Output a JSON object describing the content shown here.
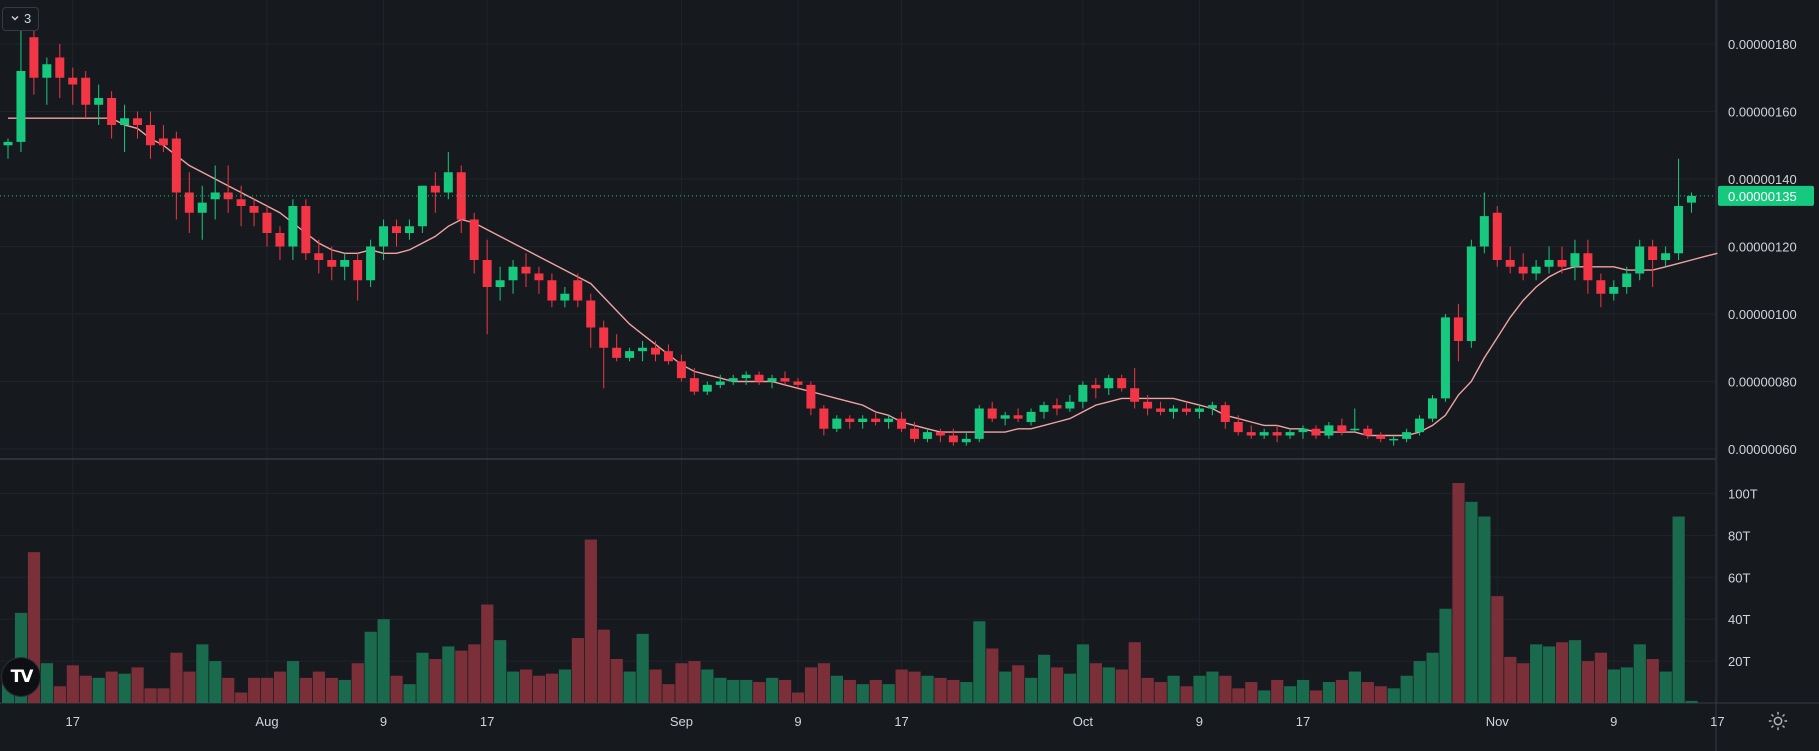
{
  "indicator_toggle": {
    "icon": "chevron-down-icon",
    "count": "3"
  },
  "logo": {
    "text": "TV",
    "icon": "tradingview-logo-icon"
  },
  "settings": {
    "icon": "gear-icon"
  },
  "colors": {
    "up": "#26a69a",
    "up_bright": "#17c97e",
    "down": "#f23645",
    "down_vol": "#7a2f39",
    "up_vol": "#1a6b4e",
    "ma": "#f0a3a3",
    "bg": "#161a1f",
    "grid": "#1f232b",
    "axis_text": "#d1d4dc"
  },
  "chart_data": {
    "type": "candlestick",
    "price_axis": {
      "ticks": [
        "0.00000060",
        "0.00000080",
        "0.00000100",
        "0.00000120",
        "0.00000140",
        "0.00000160",
        "0.00000180"
      ],
      "range": [
        4.8e-07,
        1.9e-06
      ]
    },
    "last_price": "0.00000135",
    "volume_axis": {
      "ticks": [
        "20T",
        "40T",
        "60T",
        "80T",
        "100T"
      ],
      "range": [
        0,
        105
      ]
    },
    "x_labels": [
      {
        "label": "17",
        "index": 5
      },
      {
        "label": "Aug",
        "index": 20
      },
      {
        "label": "9",
        "index": 29
      },
      {
        "label": "17",
        "index": 37
      },
      {
        "label": "Sep",
        "index": 52
      },
      {
        "label": "9",
        "index": 61
      },
      {
        "label": "17",
        "index": 69
      },
      {
        "label": "Oct",
        "index": 83
      },
      {
        "label": "9",
        "index": 92
      },
      {
        "label": "17",
        "index": 100
      },
      {
        "label": "Nov",
        "index": 115
      },
      {
        "label": "9",
        "index": 124
      },
      {
        "label": "17",
        "index": 132
      }
    ],
    "candles": [
      [
        1.5,
        1.52,
        1.46,
        1.51,
        10
      ],
      [
        1.51,
        1.85,
        1.48,
        1.72,
        43
      ],
      [
        1.82,
        1.88,
        1.65,
        1.7,
        72
      ],
      [
        1.7,
        1.76,
        1.62,
        1.74,
        19
      ],
      [
        1.76,
        1.8,
        1.64,
        1.7,
        8
      ],
      [
        1.7,
        1.73,
        1.62,
        1.68,
        18
      ],
      [
        1.7,
        1.72,
        1.58,
        1.62,
        13
      ],
      [
        1.62,
        1.68,
        1.56,
        1.64,
        12
      ],
      [
        1.64,
        1.66,
        1.52,
        1.56,
        15
      ],
      [
        1.56,
        1.62,
        1.48,
        1.58,
        14
      ],
      [
        1.58,
        1.6,
        1.52,
        1.56,
        17
      ],
      [
        1.56,
        1.6,
        1.46,
        1.5,
        7
      ],
      [
        1.52,
        1.56,
        1.48,
        1.5,
        7
      ],
      [
        1.52,
        1.54,
        1.28,
        1.36,
        24
      ],
      [
        1.36,
        1.42,
        1.24,
        1.3,
        15
      ],
      [
        1.3,
        1.38,
        1.22,
        1.33,
        28
      ],
      [
        1.34,
        1.44,
        1.28,
        1.36,
        20
      ],
      [
        1.36,
        1.44,
        1.3,
        1.34,
        12
      ],
      [
        1.34,
        1.38,
        1.26,
        1.32,
        5
      ],
      [
        1.32,
        1.34,
        1.26,
        1.3,
        12
      ],
      [
        1.3,
        1.32,
        1.2,
        1.24,
        12
      ],
      [
        1.24,
        1.26,
        1.16,
        1.2,
        15
      ],
      [
        1.2,
        1.34,
        1.16,
        1.32,
        20
      ],
      [
        1.32,
        1.34,
        1.16,
        1.18,
        12
      ],
      [
        1.18,
        1.22,
        1.12,
        1.16,
        15
      ],
      [
        1.16,
        1.2,
        1.1,
        1.14,
        12
      ],
      [
        1.14,
        1.18,
        1.1,
        1.16,
        11
      ],
      [
        1.16,
        1.18,
        1.04,
        1.1,
        19
      ],
      [
        1.1,
        1.22,
        1.08,
        1.2,
        34
      ],
      [
        1.2,
        1.28,
        1.16,
        1.26,
        40
      ],
      [
        1.26,
        1.28,
        1.2,
        1.24,
        13
      ],
      [
        1.24,
        1.28,
        1.22,
        1.26,
        9
      ],
      [
        1.26,
        1.38,
        1.24,
        1.38,
        24
      ],
      [
        1.38,
        1.42,
        1.3,
        1.36,
        21
      ],
      [
        1.36,
        1.48,
        1.34,
        1.42,
        27
      ],
      [
        1.42,
        1.44,
        1.24,
        1.28,
        25
      ],
      [
        1.28,
        1.3,
        1.12,
        1.16,
        28
      ],
      [
        1.16,
        1.22,
        0.94,
        1.08,
        47
      ],
      [
        1.08,
        1.14,
        1.04,
        1.1,
        30
      ],
      [
        1.1,
        1.16,
        1.06,
        1.14,
        15
      ],
      [
        1.14,
        1.18,
        1.08,
        1.12,
        16
      ],
      [
        1.12,
        1.14,
        1.06,
        1.1,
        13
      ],
      [
        1.1,
        1.12,
        1.02,
        1.04,
        14
      ],
      [
        1.04,
        1.08,
        1.02,
        1.06,
        16
      ],
      [
        1.1,
        1.12,
        1.02,
        1.04,
        31
      ],
      [
        1.04,
        1.06,
        0.9,
        0.96,
        78
      ],
      [
        0.96,
        0.98,
        0.78,
        0.9,
        35
      ],
      [
        0.9,
        0.94,
        0.86,
        0.87,
        21
      ],
      [
        0.87,
        0.9,
        0.86,
        0.89,
        15
      ],
      [
        0.89,
        0.92,
        0.86,
        0.9,
        33
      ],
      [
        0.9,
        0.92,
        0.86,
        0.88,
        16
      ],
      [
        0.89,
        0.91,
        0.85,
        0.86,
        9
      ],
      [
        0.86,
        0.88,
        0.8,
        0.81,
        19
      ],
      [
        0.81,
        0.84,
        0.76,
        0.77,
        20
      ],
      [
        0.77,
        0.8,
        0.76,
        0.79,
        16
      ],
      [
        0.79,
        0.82,
        0.78,
        0.8,
        12
      ],
      [
        0.8,
        0.82,
        0.79,
        0.81,
        11
      ],
      [
        0.81,
        0.83,
        0.79,
        0.82,
        11
      ],
      [
        0.82,
        0.83,
        0.79,
        0.8,
        10
      ],
      [
        0.8,
        0.82,
        0.78,
        0.81,
        12
      ],
      [
        0.81,
        0.83,
        0.79,
        0.8,
        11
      ],
      [
        0.8,
        0.81,
        0.78,
        0.79,
        5
      ],
      [
        0.79,
        0.8,
        0.7,
        0.72,
        17
      ],
      [
        0.72,
        0.73,
        0.64,
        0.66,
        19
      ],
      [
        0.66,
        0.7,
        0.65,
        0.69,
        13
      ],
      [
        0.69,
        0.7,
        0.66,
        0.68,
        11
      ],
      [
        0.68,
        0.7,
        0.66,
        0.69,
        9
      ],
      [
        0.69,
        0.71,
        0.67,
        0.68,
        11
      ],
      [
        0.68,
        0.7,
        0.66,
        0.69,
        9
      ],
      [
        0.69,
        0.71,
        0.65,
        0.66,
        16
      ],
      [
        0.66,
        0.68,
        0.62,
        0.63,
        15
      ],
      [
        0.63,
        0.66,
        0.62,
        0.65,
        13
      ],
      [
        0.65,
        0.66,
        0.62,
        0.64,
        12
      ],
      [
        0.64,
        0.66,
        0.61,
        0.62,
        11
      ],
      [
        0.62,
        0.65,
        0.61,
        0.63,
        10
      ],
      [
        0.63,
        0.73,
        0.62,
        0.72,
        39
      ],
      [
        0.72,
        0.74,
        0.68,
        0.69,
        26
      ],
      [
        0.69,
        0.71,
        0.67,
        0.7,
        15
      ],
      [
        0.7,
        0.72,
        0.68,
        0.69,
        18
      ],
      [
        0.68,
        0.72,
        0.67,
        0.71,
        12
      ],
      [
        0.71,
        0.74,
        0.69,
        0.73,
        23
      ],
      [
        0.73,
        0.75,
        0.7,
        0.72,
        17
      ],
      [
        0.72,
        0.76,
        0.71,
        0.74,
        14
      ],
      [
        0.74,
        0.8,
        0.72,
        0.79,
        28
      ],
      [
        0.79,
        0.81,
        0.75,
        0.78,
        19
      ],
      [
        0.78,
        0.82,
        0.76,
        0.81,
        17
      ],
      [
        0.81,
        0.82,
        0.77,
        0.78,
        16
      ],
      [
        0.78,
        0.84,
        0.72,
        0.74,
        29
      ],
      [
        0.74,
        0.76,
        0.7,
        0.72,
        12
      ],
      [
        0.72,
        0.74,
        0.7,
        0.71,
        10
      ],
      [
        0.71,
        0.73,
        0.69,
        0.72,
        13
      ],
      [
        0.72,
        0.74,
        0.7,
        0.71,
        8
      ],
      [
        0.71,
        0.73,
        0.69,
        0.72,
        13
      ],
      [
        0.72,
        0.74,
        0.7,
        0.73,
        15
      ],
      [
        0.73,
        0.74,
        0.66,
        0.68,
        13
      ],
      [
        0.68,
        0.7,
        0.64,
        0.65,
        7
      ],
      [
        0.65,
        0.67,
        0.63,
        0.64,
        10
      ],
      [
        0.64,
        0.66,
        0.63,
        0.65,
        6
      ],
      [
        0.65,
        0.67,
        0.62,
        0.64,
        11
      ],
      [
        0.64,
        0.66,
        0.63,
        0.65,
        8
      ],
      [
        0.65,
        0.67,
        0.63,
        0.66,
        11
      ],
      [
        0.66,
        0.67,
        0.63,
        0.64,
        6
      ],
      [
        0.64,
        0.68,
        0.63,
        0.67,
        10
      ],
      [
        0.67,
        0.69,
        0.64,
        0.65,
        11
      ],
      [
        0.66,
        0.72,
        0.65,
        0.66,
        15
      ],
      [
        0.66,
        0.67,
        0.63,
        0.64,
        10
      ],
      [
        0.64,
        0.65,
        0.62,
        0.63,
        8
      ],
      [
        0.63,
        0.64,
        0.61,
        0.63,
        7
      ],
      [
        0.63,
        0.66,
        0.62,
        0.65,
        13
      ],
      [
        0.65,
        0.7,
        0.64,
        0.69,
        20
      ],
      [
        0.69,
        0.76,
        0.68,
        0.75,
        24
      ],
      [
        0.75,
        1.0,
        0.74,
        0.99,
        45
      ],
      [
        0.99,
        1.03,
        0.86,
        0.92,
        105
      ],
      [
        0.92,
        1.22,
        0.9,
        1.2,
        96
      ],
      [
        1.2,
        1.36,
        1.18,
        1.29,
        89
      ],
      [
        1.3,
        1.32,
        1.14,
        1.16,
        51
      ],
      [
        1.16,
        1.2,
        1.12,
        1.14,
        22
      ],
      [
        1.14,
        1.18,
        1.1,
        1.12,
        19
      ],
      [
        1.12,
        1.16,
        1.1,
        1.14,
        28
      ],
      [
        1.14,
        1.2,
        1.12,
        1.16,
        27
      ],
      [
        1.16,
        1.2,
        1.12,
        1.14,
        29
      ],
      [
        1.14,
        1.22,
        1.1,
        1.18,
        30
      ],
      [
        1.18,
        1.22,
        1.06,
        1.1,
        20
      ],
      [
        1.1,
        1.12,
        1.02,
        1.06,
        24
      ],
      [
        1.06,
        1.1,
        1.04,
        1.08,
        16
      ],
      [
        1.08,
        1.14,
        1.06,
        1.12,
        17
      ],
      [
        1.12,
        1.22,
        1.1,
        1.2,
        28
      ],
      [
        1.2,
        1.22,
        1.08,
        1.16,
        21
      ],
      [
        1.16,
        1.2,
        1.14,
        1.18,
        15
      ],
      [
        1.18,
        1.46,
        1.16,
        1.32,
        89
      ],
      [
        1.33,
        1.36,
        1.3,
        1.35,
        1
      ]
    ],
    "ma": [
      1.58,
      1.58,
      1.58,
      1.58,
      1.58,
      1.58,
      1.58,
      1.58,
      1.58,
      1.56,
      1.55,
      1.52,
      1.5,
      1.47,
      1.44,
      1.42,
      1.4,
      1.38,
      1.36,
      1.34,
      1.32,
      1.3,
      1.27,
      1.24,
      1.21,
      1.19,
      1.18,
      1.18,
      1.19,
      1.18,
      1.18,
      1.19,
      1.21,
      1.23,
      1.26,
      1.28,
      1.27,
      1.25,
      1.23,
      1.21,
      1.19,
      1.17,
      1.15,
      1.13,
      1.11,
      1.09,
      1.05,
      1.01,
      0.97,
      0.94,
      0.91,
      0.88,
      0.85,
      0.83,
      0.82,
      0.81,
      0.8,
      0.8,
      0.8,
      0.8,
      0.79,
      0.78,
      0.77,
      0.76,
      0.75,
      0.74,
      0.73,
      0.71,
      0.7,
      0.68,
      0.67,
      0.66,
      0.65,
      0.65,
      0.65,
      0.65,
      0.65,
      0.65,
      0.66,
      0.66,
      0.67,
      0.68,
      0.69,
      0.71,
      0.73,
      0.74,
      0.75,
      0.75,
      0.75,
      0.75,
      0.75,
      0.74,
      0.73,
      0.72,
      0.7,
      0.69,
      0.68,
      0.67,
      0.67,
      0.66,
      0.66,
      0.65,
      0.65,
      0.65,
      0.65,
      0.64,
      0.64,
      0.64,
      0.64,
      0.65,
      0.67,
      0.7,
      0.76,
      0.8,
      0.87,
      0.93,
      0.99,
      1.04,
      1.08,
      1.11,
      1.13,
      1.14,
      1.14,
      1.14,
      1.14,
      1.13,
      1.13,
      1.13,
      1.14,
      1.15,
      1.16,
      1.17,
      1.18
    ]
  }
}
